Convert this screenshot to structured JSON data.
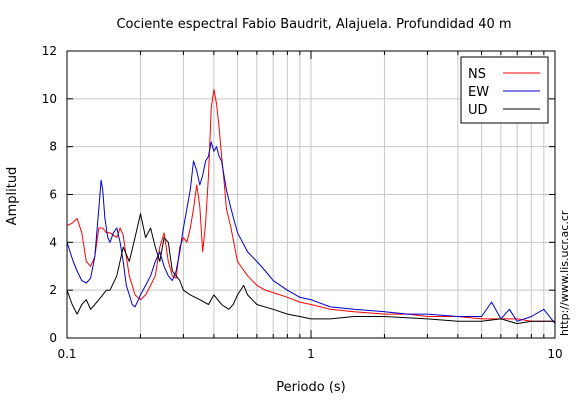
{
  "chart_data": {
    "type": "line",
    "title": "Cociente espectral Fabio Baudrit, Alajuela. Profundidad 40 m",
    "xlabel": "Periodo (s)",
    "ylabel": "Amplitud",
    "x_scale": "log",
    "xlim": [
      0.1,
      10
    ],
    "ylim": [
      0,
      12
    ],
    "x_ticks": [
      0.1,
      1,
      10
    ],
    "x_tick_labels": [
      "0.1",
      "1",
      "10"
    ],
    "y_ticks": [
      0,
      2,
      4,
      6,
      8,
      10,
      12
    ],
    "y_tick_labels": [
      "0",
      "2",
      "4",
      "6",
      "8",
      "10",
      "12"
    ],
    "grid": true,
    "legend_position": "top-right",
    "series": [
      {
        "name": "NS",
        "color": "#ff0000",
        "x": [
          0.1,
          0.105,
          0.11,
          0.115,
          0.12,
          0.125,
          0.13,
          0.135,
          0.14,
          0.145,
          0.15,
          0.155,
          0.16,
          0.165,
          0.17,
          0.175,
          0.18,
          0.185,
          0.19,
          0.2,
          0.21,
          0.22,
          0.23,
          0.24,
          0.25,
          0.26,
          0.27,
          0.28,
          0.29,
          0.3,
          0.31,
          0.32,
          0.33,
          0.34,
          0.35,
          0.36,
          0.37,
          0.38,
          0.39,
          0.4,
          0.41,
          0.42,
          0.43,
          0.44,
          0.45,
          0.47,
          0.5,
          0.55,
          0.6,
          0.65,
          0.7,
          0.8,
          0.9,
          1.0,
          1.2,
          1.5,
          2.0,
          2.5,
          3.0,
          4.0,
          5.0,
          6.0,
          7.0,
          8.0,
          9.0,
          10.0
        ],
        "y": [
          4.7,
          4.8,
          5.0,
          4.4,
          3.2,
          3.0,
          3.4,
          4.6,
          4.6,
          4.4,
          4.4,
          4.3,
          4.2,
          4.6,
          4.3,
          3.4,
          2.6,
          2.2,
          1.8,
          1.6,
          1.8,
          2.2,
          2.6,
          3.8,
          4.4,
          3.2,
          2.6,
          2.5,
          3.8,
          4.2,
          4.0,
          4.6,
          5.4,
          6.4,
          5.5,
          3.6,
          4.8,
          6.8,
          9.6,
          10.4,
          9.8,
          8.8,
          7.6,
          6.6,
          5.4,
          4.6,
          3.2,
          2.6,
          2.2,
          2.0,
          1.9,
          1.7,
          1.5,
          1.4,
          1.2,
          1.1,
          1.0,
          1.0,
          0.9,
          0.9,
          0.8,
          0.8,
          0.8,
          0.7,
          0.7,
          0.7
        ]
      },
      {
        "name": "EW",
        "color": "#0000cc",
        "x": [
          0.1,
          0.103,
          0.106,
          0.11,
          0.115,
          0.12,
          0.125,
          0.13,
          0.135,
          0.138,
          0.14,
          0.143,
          0.147,
          0.15,
          0.155,
          0.16,
          0.165,
          0.17,
          0.175,
          0.18,
          0.185,
          0.19,
          0.2,
          0.21,
          0.22,
          0.23,
          0.24,
          0.25,
          0.26,
          0.27,
          0.28,
          0.29,
          0.3,
          0.31,
          0.32,
          0.33,
          0.34,
          0.35,
          0.36,
          0.37,
          0.38,
          0.39,
          0.4,
          0.41,
          0.42,
          0.43,
          0.44,
          0.45,
          0.47,
          0.5,
          0.55,
          0.6,
          0.65,
          0.7,
          0.8,
          0.9,
          1.0,
          1.2,
          1.5,
          2.0,
          2.5,
          3.0,
          4.0,
          5.0,
          5.5,
          6.0,
          6.5,
          7.0,
          8.0,
          9.0,
          10.0
        ],
        "y": [
          4.0,
          3.6,
          3.2,
          2.8,
          2.4,
          2.3,
          2.5,
          3.4,
          5.4,
          6.6,
          6.2,
          5.0,
          4.2,
          4.0,
          4.4,
          4.6,
          4.0,
          3.2,
          2.2,
          1.8,
          1.4,
          1.3,
          1.8,
          2.2,
          2.6,
          3.2,
          3.6,
          3.0,
          2.6,
          2.4,
          2.8,
          3.6,
          4.6,
          5.4,
          6.2,
          7.4,
          7.0,
          6.4,
          6.8,
          7.4,
          7.6,
          8.2,
          7.8,
          8.0,
          7.6,
          7.4,
          6.8,
          6.2,
          5.4,
          4.4,
          3.6,
          3.2,
          2.8,
          2.4,
          2.0,
          1.7,
          1.6,
          1.3,
          1.2,
          1.1,
          1.0,
          1.0,
          0.9,
          0.9,
          1.5,
          0.8,
          1.2,
          0.7,
          0.9,
          1.2,
          0.6
        ]
      },
      {
        "name": "UD",
        "color": "#000000",
        "x": [
          0.1,
          0.105,
          0.11,
          0.115,
          0.12,
          0.125,
          0.13,
          0.135,
          0.14,
          0.145,
          0.15,
          0.16,
          0.17,
          0.18,
          0.19,
          0.2,
          0.21,
          0.22,
          0.23,
          0.24,
          0.25,
          0.26,
          0.27,
          0.28,
          0.29,
          0.3,
          0.32,
          0.35,
          0.38,
          0.4,
          0.43,
          0.46,
          0.48,
          0.5,
          0.53,
          0.55,
          0.6,
          0.7,
          0.8,
          0.9,
          1.0,
          1.2,
          1.5,
          2.0,
          3.0,
          4.0,
          5.0,
          6.0,
          7.0,
          8.0,
          9.0,
          10.0
        ],
        "y": [
          2.0,
          1.4,
          1.0,
          1.4,
          1.6,
          1.2,
          1.4,
          1.6,
          1.8,
          2.0,
          2.0,
          2.6,
          3.8,
          3.2,
          4.2,
          5.2,
          4.2,
          4.6,
          3.8,
          3.2,
          4.2,
          4.0,
          2.8,
          2.6,
          2.4,
          2.0,
          1.8,
          1.6,
          1.4,
          1.8,
          1.4,
          1.2,
          1.4,
          1.8,
          2.2,
          1.8,
          1.4,
          1.2,
          1.0,
          0.9,
          0.8,
          0.8,
          0.9,
          0.9,
          0.8,
          0.7,
          0.7,
          0.8,
          0.6,
          0.7,
          0.7,
          0.7
        ]
      }
    ]
  },
  "credit": "http://www.lis.ucr.ac.cr"
}
